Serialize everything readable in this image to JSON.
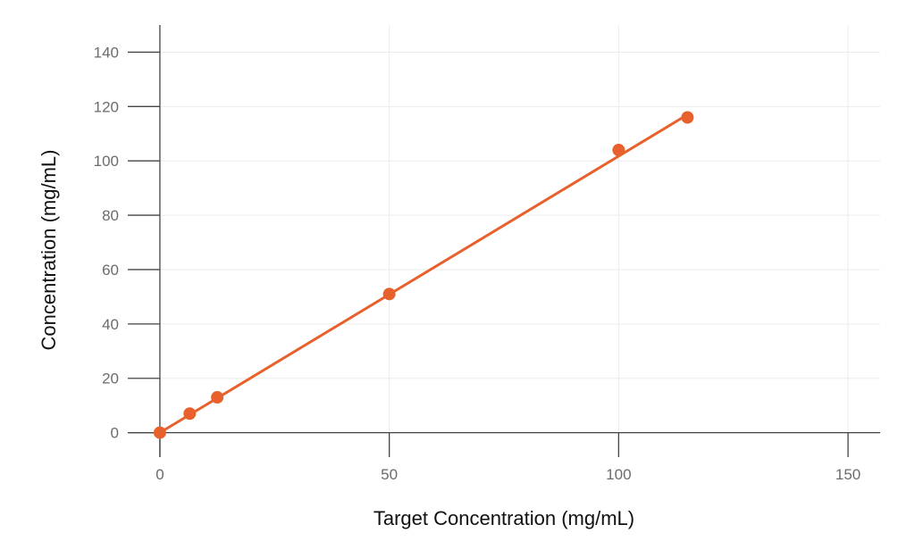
{
  "chart_data": {
    "type": "scatter",
    "title": "",
    "xlabel": "Target Concentration (mg/mL)",
    "ylabel": "Concentration (mg/mL)",
    "xlim": [
      -7,
      157
    ],
    "ylim": [
      -9,
      150
    ],
    "x_ticks": [
      0,
      50,
      100,
      150
    ],
    "y_ticks": [
      0,
      20,
      40,
      60,
      80,
      100,
      120,
      140
    ],
    "grid": true,
    "legend": "none",
    "series": [
      {
        "points": [
          {
            "x": 0,
            "y": 0
          },
          {
            "x": 6.5,
            "y": 7
          },
          {
            "x": 12.5,
            "y": 13
          },
          {
            "x": 50,
            "y": 51
          },
          {
            "x": 100,
            "y": 104
          },
          {
            "x": 115,
            "y": 116
          }
        ],
        "color": "#e8602c"
      }
    ],
    "fit_line": {
      "x": [
        0,
        115
      ],
      "y": [
        0,
        117
      ],
      "color": "#e8602c"
    }
  }
}
